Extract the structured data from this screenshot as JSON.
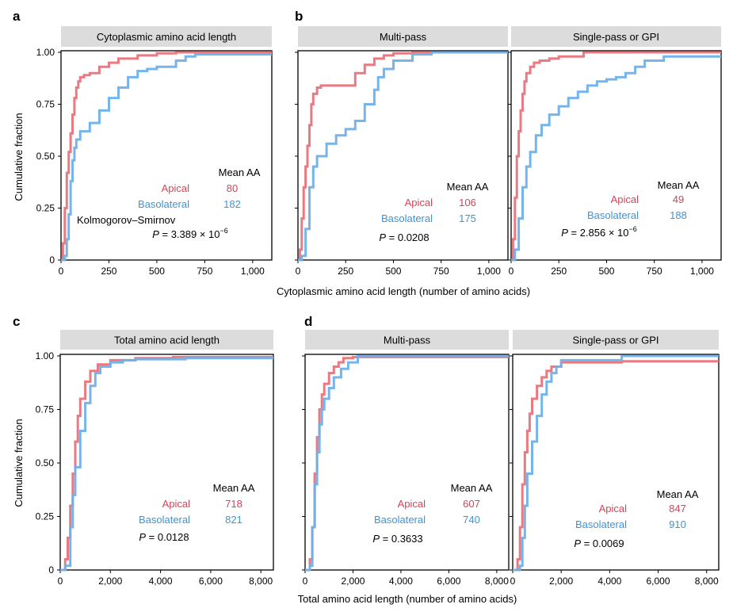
{
  "colors": {
    "apical": "#e8737a",
    "basolateral": "#6fb1ea",
    "apical_text": "#d84256",
    "basolateral_text": "#3f93d6",
    "header_bg": "#dcdcdc",
    "axis": "#000000"
  },
  "shared": {
    "ylabel": "Cumulative fraction",
    "xlabel_top": "Cytoplasmic amino acid length (number of amino acids)",
    "xlabel_bottom": "Total amino acid length (number of amino acids)",
    "legend_title": "Mean AA",
    "apical_label": "Apical",
    "basolateral_label": "Basolateral",
    "ks_label": "Kolmogorov–Smirnov"
  },
  "panel_letters": [
    "a",
    "b",
    "c",
    "d"
  ],
  "chart_data": [
    {
      "type": "line",
      "panel": "a",
      "title": "Cytoplasmic amino acid length",
      "xlim": [
        0,
        1100
      ],
      "ylim": [
        0,
        1
      ],
      "xticks": [
        0,
        250,
        500,
        750,
        1000
      ],
      "xtick_labels": [
        "0",
        "250",
        "500",
        "750",
        "1,000"
      ],
      "yticks": [
        0,
        0.25,
        0.5,
        0.75,
        1.0
      ],
      "ytick_labels": [
        "0",
        "0.25",
        "0.50",
        "0.75",
        "1.00"
      ],
      "mean_apical": "80",
      "mean_basolateral": "182",
      "p_value": "3.389 × 10",
      "p_exp": "−6",
      "series": [
        {
          "name": "Apical",
          "x": [
            0,
            10,
            20,
            30,
            40,
            50,
            60,
            70,
            80,
            90,
            100,
            120,
            150,
            200,
            250,
            300,
            400,
            500,
            600,
            1100
          ],
          "y": [
            0,
            0.08,
            0.25,
            0.42,
            0.52,
            0.61,
            0.7,
            0.78,
            0.83,
            0.86,
            0.88,
            0.89,
            0.9,
            0.93,
            0.95,
            0.97,
            0.985,
            0.995,
            1.0,
            1.0
          ]
        },
        {
          "name": "Basolateral",
          "x": [
            0,
            20,
            30,
            40,
            50,
            60,
            70,
            80,
            100,
            150,
            200,
            250,
            300,
            350,
            400,
            450,
            500,
            600,
            650,
            700,
            800,
            1100
          ],
          "y": [
            0,
            0.02,
            0.1,
            0.22,
            0.38,
            0.48,
            0.54,
            0.58,
            0.62,
            0.66,
            0.72,
            0.78,
            0.83,
            0.88,
            0.91,
            0.92,
            0.93,
            0.96,
            0.98,
            0.99,
            0.99,
            0.99
          ]
        }
      ]
    },
    {
      "type": "line",
      "panel": "b",
      "title": "Multi-pass",
      "xlim": [
        0,
        1100
      ],
      "ylim": [
        0,
        1
      ],
      "xticks": [
        0,
        250,
        500,
        750,
        1000
      ],
      "xtick_labels": [
        "0",
        "250",
        "500",
        "750",
        "1,000"
      ],
      "yticks": [
        0,
        0.25,
        0.5,
        0.75,
        1.0
      ],
      "mean_apical": "106",
      "mean_basolateral": "175",
      "p_value": "0.0208",
      "series": [
        {
          "name": "Apical",
          "x": [
            0,
            10,
            20,
            30,
            40,
            50,
            60,
            70,
            80,
            100,
            120,
            250,
            300,
            350,
            400,
            450,
            500,
            600,
            1100
          ],
          "y": [
            0,
            0.05,
            0.2,
            0.35,
            0.45,
            0.55,
            0.65,
            0.75,
            0.8,
            0.83,
            0.84,
            0.84,
            0.9,
            0.94,
            0.97,
            0.985,
            0.995,
            1.0,
            1.0
          ]
        },
        {
          "name": "Basolateral",
          "x": [
            0,
            20,
            40,
            60,
            80,
            100,
            150,
            200,
            250,
            300,
            350,
            400,
            420,
            450,
            500,
            600,
            700,
            1100
          ],
          "y": [
            0,
            0.02,
            0.15,
            0.35,
            0.45,
            0.5,
            0.56,
            0.6,
            0.63,
            0.67,
            0.75,
            0.82,
            0.88,
            0.92,
            0.96,
            0.99,
            1.0,
            1.0
          ]
        }
      ]
    },
    {
      "type": "line",
      "panel": "b",
      "title": "Single-pass or GPI",
      "xlim": [
        0,
        1100
      ],
      "ylim": [
        0,
        1
      ],
      "xticks": [
        0,
        250,
        500,
        750,
        1000
      ],
      "xtick_labels": [
        "0",
        "250",
        "500",
        "750",
        "1,000"
      ],
      "yticks": [
        0,
        0.25,
        0.5,
        0.75,
        1.0
      ],
      "mean_apical": "49",
      "mean_basolateral": "188",
      "p_value": "2.856 × 10",
      "p_exp": "−6",
      "series": [
        {
          "name": "Apical",
          "x": [
            0,
            10,
            20,
            30,
            40,
            50,
            60,
            70,
            80,
            100,
            120,
            150,
            200,
            250,
            300,
            380,
            1100
          ],
          "y": [
            0,
            0.1,
            0.3,
            0.5,
            0.62,
            0.72,
            0.8,
            0.86,
            0.9,
            0.93,
            0.95,
            0.96,
            0.97,
            0.98,
            0.98,
            1.0,
            1.0
          ]
        },
        {
          "name": "Basolateral",
          "x": [
            0,
            20,
            40,
            60,
            80,
            100,
            130,
            160,
            200,
            250,
            300,
            350,
            400,
            450,
            500,
            550,
            600,
            650,
            700,
            800,
            1100
          ],
          "y": [
            0,
            0.05,
            0.2,
            0.35,
            0.45,
            0.52,
            0.6,
            0.65,
            0.7,
            0.74,
            0.78,
            0.81,
            0.84,
            0.86,
            0.87,
            0.88,
            0.9,
            0.93,
            0.96,
            0.98,
            0.98
          ]
        }
      ]
    },
    {
      "type": "line",
      "panel": "c",
      "title": "Total amino acid length",
      "xlim": [
        0,
        8500
      ],
      "ylim": [
        0,
        1
      ],
      "xticks": [
        0,
        2000,
        4000,
        6000,
        8000
      ],
      "xtick_labels": [
        "0",
        "2,000",
        "4,000",
        "6,000",
        "8,000"
      ],
      "yticks": [
        0,
        0.25,
        0.5,
        0.75,
        1.0
      ],
      "ytick_labels": [
        "0",
        "0.25",
        "0.50",
        "0.75",
        "1.00"
      ],
      "mean_apical": "718",
      "mean_basolateral": "821",
      "p_value": "0.0128",
      "series": [
        {
          "name": "Apical",
          "x": [
            0,
            200,
            300,
            400,
            500,
            600,
            700,
            800,
            1000,
            1200,
            1500,
            2000,
            3000,
            4500,
            8500
          ],
          "y": [
            0,
            0.05,
            0.15,
            0.3,
            0.45,
            0.6,
            0.72,
            0.8,
            0.88,
            0.93,
            0.96,
            0.98,
            0.99,
            0.995,
            0.995
          ]
        },
        {
          "name": "Basolateral",
          "x": [
            0,
            200,
            400,
            500,
            600,
            800,
            1000,
            1200,
            1400,
            1600,
            2000,
            2500,
            3000,
            5000,
            8500
          ],
          "y": [
            0,
            0.02,
            0.2,
            0.35,
            0.48,
            0.65,
            0.78,
            0.86,
            0.92,
            0.95,
            0.97,
            0.98,
            0.985,
            0.99,
            0.99
          ]
        }
      ]
    },
    {
      "type": "line",
      "panel": "d",
      "title": "Multi-pass",
      "xlim": [
        0,
        8500
      ],
      "ylim": [
        0,
        1
      ],
      "xticks": [
        0,
        2000,
        4000,
        6000,
        8000
      ],
      "xtick_labels": [
        "0",
        "2,000",
        "4,000",
        "6,000",
        "8,000"
      ],
      "yticks": [
        0,
        0.25,
        0.5,
        0.75,
        1.0
      ],
      "mean_apical": "607",
      "mean_basolateral": "740",
      "p_value": "0.3633",
      "series": [
        {
          "name": "Apical",
          "x": [
            0,
            200,
            300,
            400,
            500,
            600,
            700,
            800,
            1000,
            1200,
            1400,
            1600,
            2000,
            8500
          ],
          "y": [
            0,
            0.05,
            0.2,
            0.45,
            0.62,
            0.75,
            0.82,
            0.87,
            0.92,
            0.95,
            0.97,
            0.99,
            0.995,
            0.995
          ]
        },
        {
          "name": "Basolateral",
          "x": [
            0,
            200,
            300,
            400,
            500,
            600,
            700,
            800,
            1000,
            1200,
            1500,
            1800,
            2200,
            8500
          ],
          "y": [
            0,
            0.02,
            0.2,
            0.4,
            0.55,
            0.68,
            0.75,
            0.8,
            0.85,
            0.9,
            0.94,
            0.97,
            1.0,
            1.0
          ]
        }
      ]
    },
    {
      "type": "line",
      "panel": "d",
      "title": "Single-pass or GPI",
      "xlim": [
        0,
        8500
      ],
      "ylim": [
        0,
        1
      ],
      "xticks": [
        0,
        2000,
        4000,
        6000,
        8000
      ],
      "xtick_labels": [
        "0",
        "2,000",
        "4,000",
        "6,000",
        "8,000"
      ],
      "yticks": [
        0,
        0.25,
        0.5,
        0.75,
        1.0
      ],
      "mean_apical": "847",
      "mean_basolateral": "910",
      "p_value": "0.0069",
      "series": [
        {
          "name": "Apical",
          "x": [
            0,
            200,
            300,
            400,
            500,
            600,
            700,
            800,
            1000,
            1200,
            1400,
            1600,
            2000,
            4500,
            8500
          ],
          "y": [
            0,
            0.05,
            0.2,
            0.4,
            0.55,
            0.65,
            0.73,
            0.8,
            0.86,
            0.9,
            0.93,
            0.95,
            0.97,
            0.975,
            0.975
          ]
        },
        {
          "name": "Basolateral",
          "x": [
            0,
            300,
            400,
            500,
            600,
            800,
            1000,
            1200,
            1400,
            1600,
            1800,
            2000,
            4500,
            8500
          ],
          "y": [
            0,
            0.02,
            0.15,
            0.3,
            0.45,
            0.6,
            0.72,
            0.82,
            0.88,
            0.92,
            0.95,
            0.98,
            1.0,
            1.0
          ]
        }
      ]
    }
  ]
}
